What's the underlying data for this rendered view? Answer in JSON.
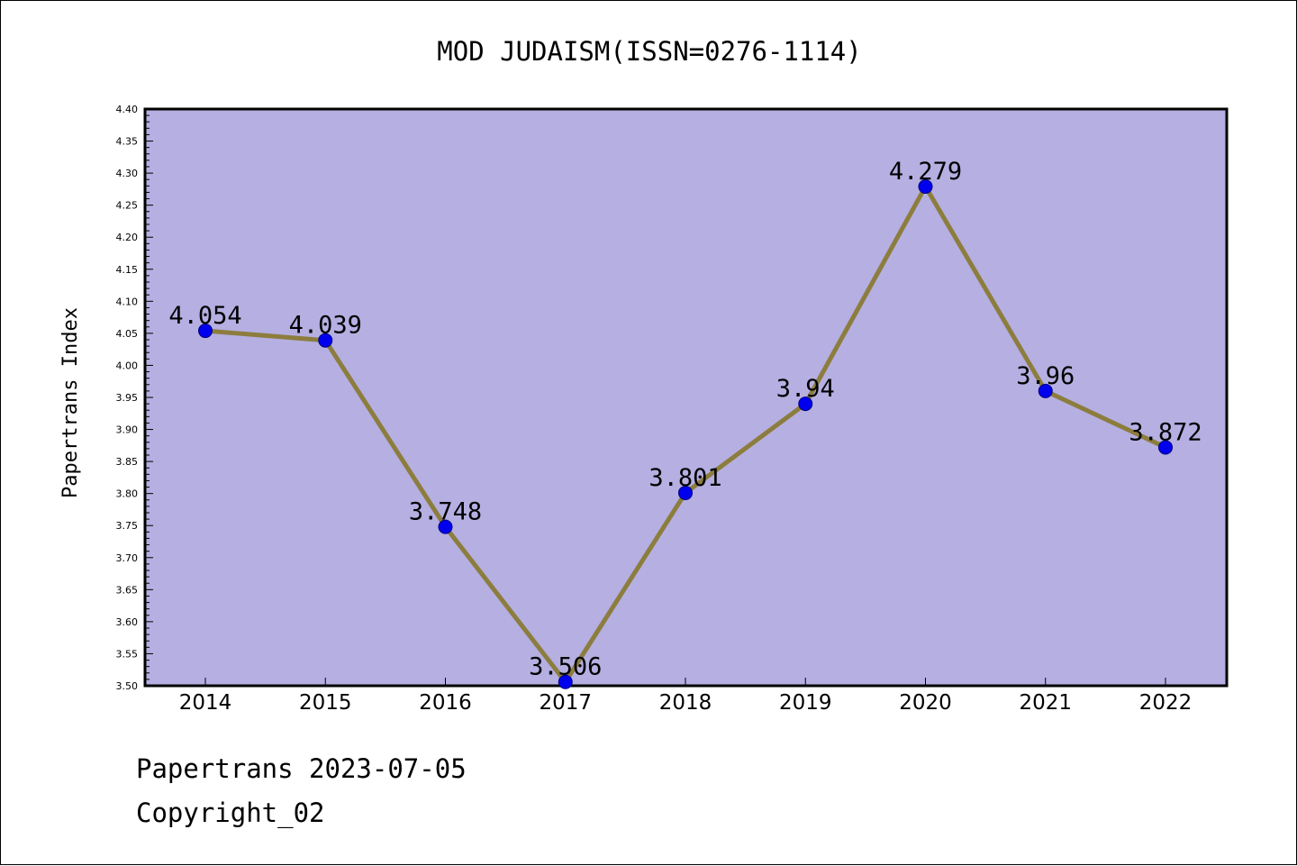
{
  "chart_data": {
    "type": "line",
    "title": "MOD JUDAISM(ISSN=0276-1114)",
    "xlabel": "",
    "ylabel": "Papertrans Index",
    "categories": [
      "2014",
      "2015",
      "2016",
      "2017",
      "2018",
      "2019",
      "2020",
      "2021",
      "2022"
    ],
    "series": [
      {
        "values": [
          4.054,
          4.039,
          3.748,
          3.506,
          3.801,
          3.94,
          4.279,
          3.96,
          3.872
        ],
        "data_labels": [
          "4.054",
          "4.039",
          "3.748",
          "3.506",
          "3.801",
          "3.94",
          "4.279",
          "3.96",
          "3.872"
        ],
        "line_color": "#8c7d3e",
        "marker_color": "#0000ee"
      }
    ],
    "ylim": [
      3.5,
      4.4
    ],
    "yticks": [
      "3.50",
      "3.55",
      "3.60",
      "3.65",
      "3.70",
      "3.75",
      "3.80",
      "3.85",
      "3.90",
      "3.95",
      "4.00",
      "4.05",
      "4.10",
      "4.15",
      "4.20",
      "4.25",
      "4.30",
      "4.35",
      "4.40"
    ],
    "grid": false,
    "plot_background": "#b5afe2"
  },
  "footer": {
    "source": "Papertrans 2023-07-05",
    "copyright": "Copyright_02"
  }
}
